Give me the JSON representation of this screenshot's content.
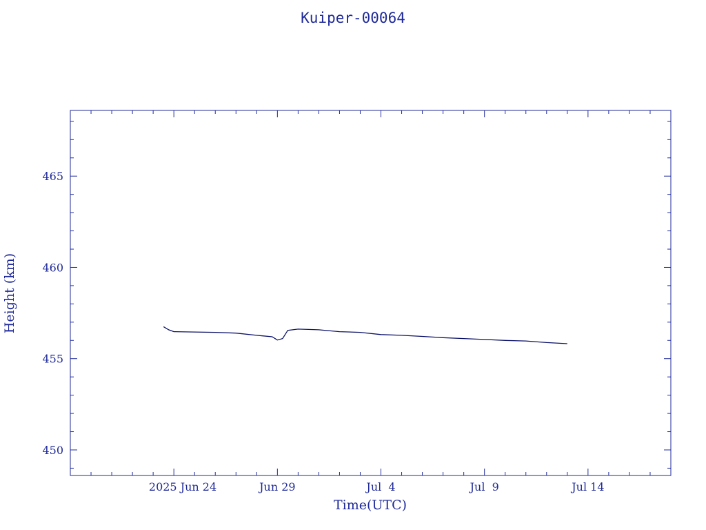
{
  "chart_data": {
    "type": "line",
    "title": "Kuiper-00064",
    "xlabel": "Time(UTC)",
    "ylabel": "Height (km)",
    "x_range": [
      "2025-06-19",
      "2025-07-18"
    ],
    "y_range": [
      448.6,
      468.6
    ],
    "x_ticks": [
      {
        "date": "2025-06-24",
        "label": "2025 Jun 24"
      },
      {
        "date": "2025-06-29",
        "label": "Jun 29"
      },
      {
        "date": "2025-07-04",
        "label": "Jul  4"
      },
      {
        "date": "2025-07-09",
        "label": "Jul  9"
      },
      {
        "date": "2025-07-14",
        "label": "Jul 14"
      }
    ],
    "y_ticks": [
      {
        "value": 450,
        "label": "450"
      },
      {
        "value": 455,
        "label": "455"
      },
      {
        "value": 460,
        "label": "460"
      },
      {
        "value": 465,
        "label": "465"
      }
    ],
    "series": [
      {
        "color": "#0a1066",
        "points": [
          {
            "x": "2025-06-23T12:00",
            "y": 456.75
          },
          {
            "x": "2025-06-23T18:00",
            "y": 456.58
          },
          {
            "x": "2025-06-24T00:00",
            "y": 456.48
          },
          {
            "x": "2025-06-25T00:00",
            "y": 456.46
          },
          {
            "x": "2025-06-26T00:00",
            "y": 456.44
          },
          {
            "x": "2025-06-27T00:00",
            "y": 456.4
          },
          {
            "x": "2025-06-28T00:00",
            "y": 456.28
          },
          {
            "x": "2025-06-28T18:00",
            "y": 456.2
          },
          {
            "x": "2025-06-29T00:00",
            "y": 456.02
          },
          {
            "x": "2025-06-29T06:00",
            "y": 456.1
          },
          {
            "x": "2025-06-29T12:00",
            "y": 456.55
          },
          {
            "x": "2025-06-30T00:00",
            "y": 456.62
          },
          {
            "x": "2025-07-01T00:00",
            "y": 456.58
          },
          {
            "x": "2025-07-02T00:00",
            "y": 456.48
          },
          {
            "x": "2025-07-03T00:00",
            "y": 456.44
          },
          {
            "x": "2025-07-04T00:00",
            "y": 456.32
          },
          {
            "x": "2025-07-05T00:00",
            "y": 456.28
          },
          {
            "x": "2025-07-06T00:00",
            "y": 456.22
          },
          {
            "x": "2025-07-07T00:00",
            "y": 456.15
          },
          {
            "x": "2025-07-08T00:00",
            "y": 456.1
          },
          {
            "x": "2025-07-09T00:00",
            "y": 456.05
          },
          {
            "x": "2025-07-10T00:00",
            "y": 456.0
          },
          {
            "x": "2025-07-11T00:00",
            "y": 455.97
          },
          {
            "x": "2025-07-12T00:00",
            "y": 455.88
          },
          {
            "x": "2025-07-13T00:00",
            "y": 455.82
          }
        ]
      }
    ],
    "grid": false,
    "legend": "none"
  }
}
